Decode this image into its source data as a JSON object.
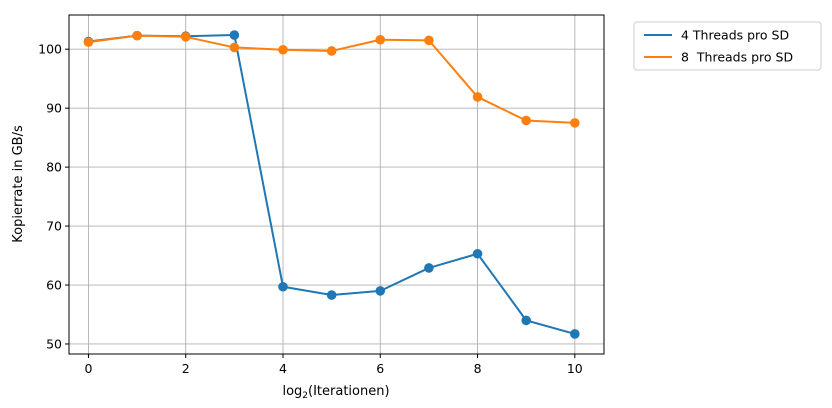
{
  "chart_data": {
    "type": "line",
    "xlabel": "log",
    "xlabel_sub": "2",
    "xlabel_rest": "(Iterationen)",
    "ylabel": "Kopierrate in GB/s",
    "xlim": [
      -0.4,
      10.6
    ],
    "ylim": [
      48.3,
      105.8
    ],
    "xticks": [
      0,
      2,
      4,
      6,
      8,
      10
    ],
    "yticks": [
      50,
      60,
      70,
      80,
      90,
      100
    ],
    "grid": true,
    "legend_position": "outside-top-right",
    "series": [
      {
        "name": "4 Threads pro SD",
        "color": "#1f77b4",
        "x": [
          0,
          1,
          2,
          3,
          4,
          5,
          6,
          7,
          8,
          9,
          10
        ],
        "y": [
          101.3,
          102.3,
          102.2,
          102.4,
          59.7,
          58.3,
          59.0,
          62.9,
          65.3,
          54.0,
          51.7
        ]
      },
      {
        "name": "8  Threads pro SD",
        "color": "#ff7f0e",
        "x": [
          0,
          1,
          2,
          3,
          4,
          5,
          6,
          7,
          8,
          9,
          10
        ],
        "y": [
          101.2,
          102.3,
          102.1,
          100.3,
          99.9,
          99.7,
          101.6,
          101.5,
          91.9,
          87.9,
          87.5
        ]
      }
    ]
  }
}
